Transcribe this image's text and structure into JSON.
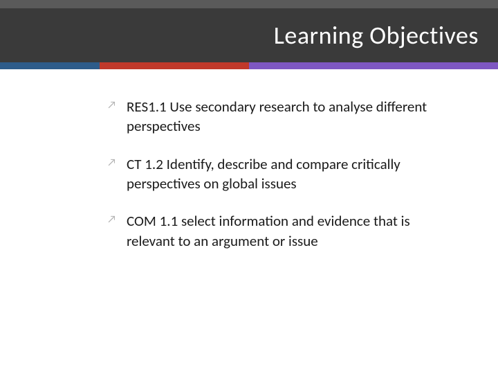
{
  "header": {
    "title": "Learning Objectives",
    "top_bar_color": "#5a5a5a",
    "title_bar_color": "#3a3a3a",
    "title_color": "#ffffff",
    "title_fontsize": 36,
    "accent_segments": [
      {
        "color": "#2e5c8a",
        "width_pct": 20
      },
      {
        "color": "#c0392b",
        "width_pct": 30
      },
      {
        "color": "#7e57c2",
        "width_pct": 50
      }
    ]
  },
  "objectives": {
    "bullet_glyph": "↗",
    "bullet_color": "#b0b0b0",
    "text_color": "#1a1a1a",
    "fontsize": 21,
    "items": [
      "RES1.1 Use secondary research to analyse different perspectives",
      "CT 1.2 Identify, describe and compare critically perspectives on global issues",
      "COM 1.1 select information and evidence that is relevant to an argument or issue"
    ]
  },
  "background_color": "#ffffff"
}
